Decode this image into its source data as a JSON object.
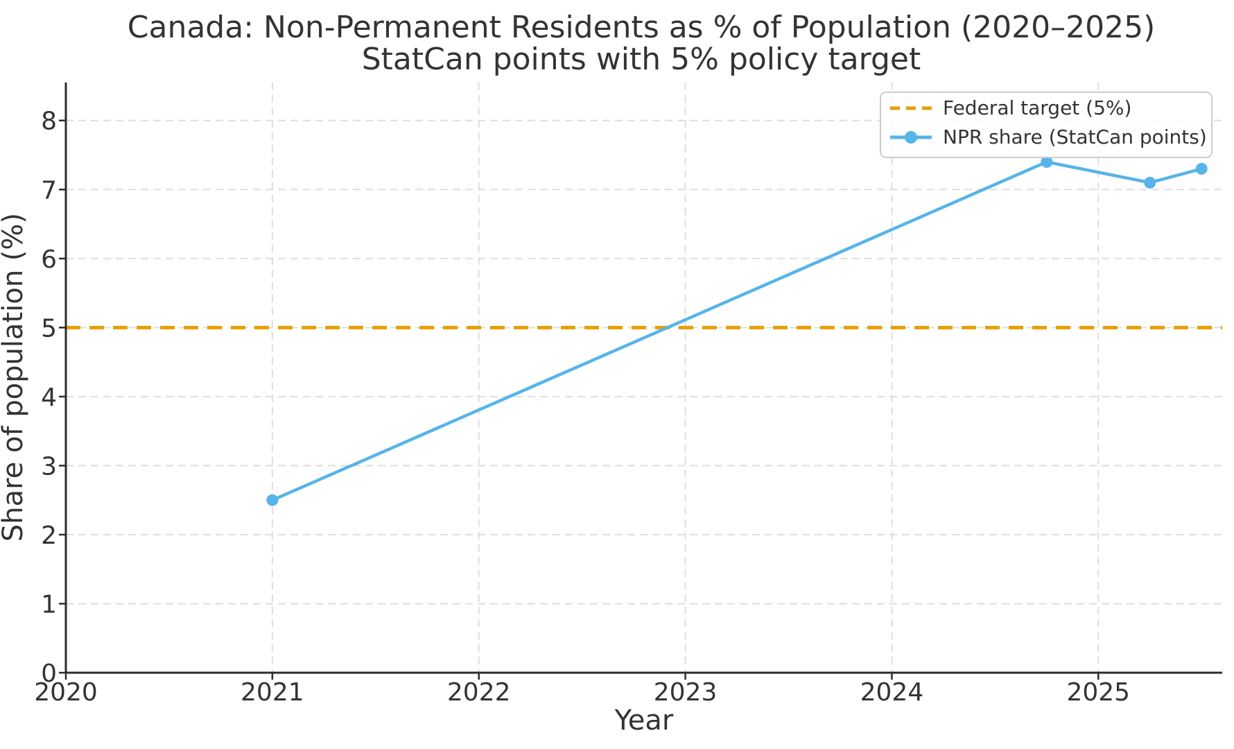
{
  "figure": {
    "title_line1": "Canada: Non-Permanent Residents as % of Population (2020–2025)",
    "title_line2": "StatCan points with 5% policy target"
  },
  "axes": {
    "xlabel": "Year",
    "ylabel": "Share of population (%)",
    "x_tick_labels": [
      "2020",
      "2021",
      "2022",
      "2023",
      "2024",
      "2025"
    ],
    "y_tick_labels": [
      "0",
      "1",
      "2",
      "3",
      "4",
      "5",
      "6",
      "7",
      "8"
    ]
  },
  "legend": {
    "position": "upper right",
    "entries": [
      {
        "label": "Federal target (5%)",
        "color": "#E69F00",
        "style": "dashed"
      },
      {
        "label": "NPR share (StatCan points)",
        "color": "#56B4E9",
        "style": "solid-with-marker"
      }
    ]
  },
  "colors": {
    "target_orange": "#E69F00",
    "npr_blue": "#56B4E9",
    "grid_gray": "#dedede",
    "text_dark": "#333333"
  },
  "chart_data": {
    "type": "line",
    "title": "Canada: Non-Permanent Residents as % of Population (2020–2025)",
    "subtitle": "StatCan points with 5% policy target",
    "xlabel": "Year",
    "ylabel": "Share of population (%)",
    "xlim": [
      2020,
      2025.6
    ],
    "ylim": [
      0,
      8.55
    ],
    "x_ticks": [
      2020,
      2021,
      2022,
      2023,
      2024,
      2025
    ],
    "y_ticks": [
      0,
      1,
      2,
      3,
      4,
      5,
      6,
      7,
      8
    ],
    "grid": true,
    "legend_position": "upper right",
    "series": [
      {
        "name": "Federal target (5%)",
        "kind": "hline",
        "y": 5,
        "color": "#E69F00",
        "linestyle": "dashed"
      },
      {
        "name": "NPR share (StatCan points)",
        "kind": "line",
        "x": [
          2021,
          2024.75,
          2025.25,
          2025.5
        ],
        "y": [
          2.5,
          7.4,
          7.1,
          7.3
        ],
        "color": "#56B4E9",
        "linestyle": "solid",
        "marker": "circle"
      }
    ]
  }
}
